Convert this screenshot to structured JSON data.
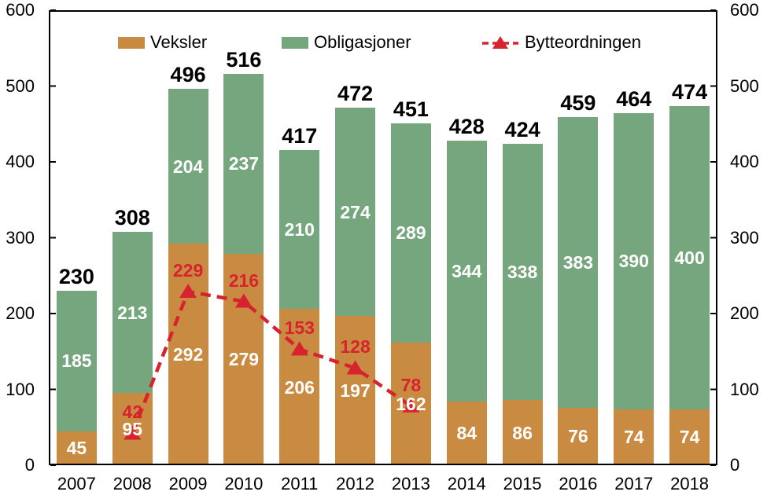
{
  "chart_data": {
    "type": "bar",
    "subtype": "stacked-bars-with-line-overlay",
    "title": "",
    "xlabel": "",
    "ylabel": "",
    "categories": [
      "2007",
      "2008",
      "2009",
      "2010",
      "2011",
      "2012",
      "2013",
      "2014",
      "2015",
      "2016",
      "2017",
      "2018"
    ],
    "series": [
      {
        "name": "Veksler",
        "kind": "bar",
        "color": "#C98B41",
        "label_color": "#FFFFFF",
        "values": [
          45,
          95,
          292,
          279,
          206,
          197,
          162,
          84,
          86,
          76,
          74,
          74
        ]
      },
      {
        "name": "Obligasjoner",
        "kind": "bar",
        "color": "#76A67E",
        "label_color": "#FFFFFF",
        "values": [
          185,
          213,
          204,
          237,
          210,
          274,
          289,
          344,
          338,
          383,
          390,
          400
        ]
      },
      {
        "name": "Bytteordningen",
        "kind": "line",
        "color": "#D7232E",
        "marker": "triangle-up",
        "line_style": "dashed",
        "values": [
          null,
          42,
          229,
          216,
          153,
          128,
          78,
          null,
          null,
          null,
          null,
          null
        ]
      }
    ],
    "totals": [
      230,
      308,
      496,
      516,
      417,
      472,
      451,
      428,
      424,
      459,
      464,
      474
    ],
    "ylim": [
      0,
      600
    ],
    "yticks": [
      0,
      100,
      200,
      300,
      400,
      500,
      600
    ],
    "dual_y_axis": true,
    "grid": false,
    "legend_position": "top-inside",
    "axis_color": "#000000",
    "total_label_color": "#000000"
  },
  "legend": {
    "items": [
      {
        "label": "Veksler"
      },
      {
        "label": "Obligasjoner"
      },
      {
        "label": "Bytteordningen"
      }
    ]
  }
}
